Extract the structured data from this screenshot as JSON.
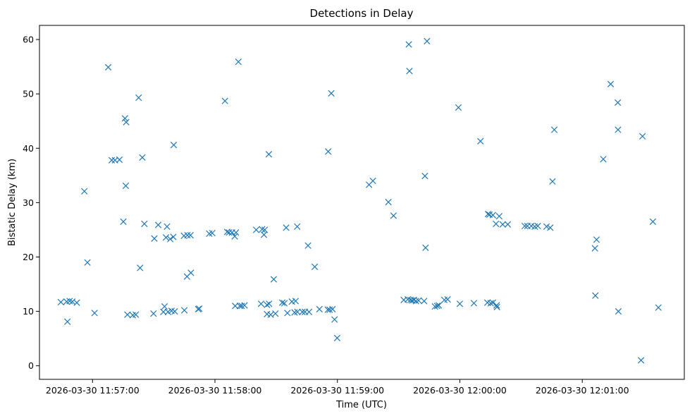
{
  "chart_data": {
    "type": "scatter",
    "title": "Detections in Delay",
    "xlabel": "Time (UTC)",
    "ylabel": "Bistatic Delay (km)",
    "marker": "x",
    "color": "#1f77b4",
    "x_ticks": [
      "2026-03-30 11:57:00",
      "2026-03-30 11:58:00",
      "2026-03-30 11:59:00",
      "2026-03-30 12:00:00",
      "2026-03-30 12:01:00"
    ],
    "y_ticks": [
      "0",
      "10",
      "20",
      "30",
      "40",
      "50",
      "60"
    ],
    "xlim": [
      "2026-03-30 11:56:34",
      "2026-03-30 12:01:50"
    ],
    "ylim": [
      -2.5,
      62.6
    ],
    "grid": false,
    "points": [
      {
        "t": "2026-03-30 11:56:44.5",
        "y": 11.7
      },
      {
        "t": "2026-03-30 11:56:47.3",
        "y": 11.8
      },
      {
        "t": "2026-03-30 11:56:47.7",
        "y": 8.1
      },
      {
        "t": "2026-03-30 11:56:48.8",
        "y": 11.9
      },
      {
        "t": "2026-03-30 11:56:50.1",
        "y": 11.8
      },
      {
        "t": "2026-03-30 11:56:52.3",
        "y": 11.6
      },
      {
        "t": "2026-03-30 11:56:56.0",
        "y": 32.1
      },
      {
        "t": "2026-03-30 11:56:57.5",
        "y": 19.0
      },
      {
        "t": "2026-03-30 11:57:01.0",
        "y": 9.7
      },
      {
        "t": "2026-03-30 11:57:07.7",
        "y": 54.9
      },
      {
        "t": "2026-03-30 11:57:09.4",
        "y": 37.8
      },
      {
        "t": "2026-03-30 11:57:11.0",
        "y": 37.8
      },
      {
        "t": "2026-03-30 11:57:13.2",
        "y": 37.9
      },
      {
        "t": "2026-03-30 11:57:15.1",
        "y": 26.5
      },
      {
        "t": "2026-03-30 11:57:15.9",
        "y": 45.5
      },
      {
        "t": "2026-03-30 11:57:16.5",
        "y": 44.8
      },
      {
        "t": "2026-03-30 11:57:16.3",
        "y": 33.1
      },
      {
        "t": "2026-03-30 11:57:17.1",
        "y": 9.4
      },
      {
        "t": "2026-03-30 11:57:19.7",
        "y": 9.3
      },
      {
        "t": "2026-03-30 11:57:21.2",
        "y": 9.4
      },
      {
        "t": "2026-03-30 11:57:22.6",
        "y": 49.3
      },
      {
        "t": "2026-03-30 11:57:23.3",
        "y": 18.0
      },
      {
        "t": "2026-03-30 11:57:24.4",
        "y": 38.3
      },
      {
        "t": "2026-03-30 11:57:25.4",
        "y": 26.1
      },
      {
        "t": "2026-03-30 11:57:30.3",
        "y": 23.4
      },
      {
        "t": "2026-03-30 11:57:29.9",
        "y": 9.6
      },
      {
        "t": "2026-03-30 11:57:32.2",
        "y": 25.9
      },
      {
        "t": "2026-03-30 11:57:34.7",
        "y": 9.9
      },
      {
        "t": "2026-03-30 11:57:35.3",
        "y": 10.9
      },
      {
        "t": "2026-03-30 11:57:36.0",
        "y": 23.6
      },
      {
        "t": "2026-03-30 11:57:36.5",
        "y": 25.6
      },
      {
        "t": "2026-03-30 11:57:37.0",
        "y": 9.9
      },
      {
        "t": "2026-03-30 11:57:38.1",
        "y": 23.3
      },
      {
        "t": "2026-03-30 11:57:38.7",
        "y": 10.1
      },
      {
        "t": "2026-03-30 11:57:39.8",
        "y": 40.6
      },
      {
        "t": "2026-03-30 11:57:39.6",
        "y": 23.7
      },
      {
        "t": "2026-03-30 11:57:40.3",
        "y": 10.0
      },
      {
        "t": "2026-03-30 11:57:44.8",
        "y": 23.9
      },
      {
        "t": "2026-03-30 11:57:45.0",
        "y": 10.2
      },
      {
        "t": "2026-03-30 11:57:46.3",
        "y": 16.4
      },
      {
        "t": "2026-03-30 11:57:46.5",
        "y": 24.0
      },
      {
        "t": "2026-03-30 11:57:48.0",
        "y": 24.0
      },
      {
        "t": "2026-03-30 11:57:48.2",
        "y": 17.1
      },
      {
        "t": "2026-03-30 11:57:51.8",
        "y": 10.4
      },
      {
        "t": "2026-03-30 11:57:52.3",
        "y": 10.5
      },
      {
        "t": "2026-03-30 11:57:57.2",
        "y": 24.3
      },
      {
        "t": "2026-03-30 11:57:58.7",
        "y": 24.4
      },
      {
        "t": "2026-03-30 11:58:04.9",
        "y": 48.7
      },
      {
        "t": "2026-03-30 11:58:06.0",
        "y": 24.6
      },
      {
        "t": "2026-03-30 11:58:06.9",
        "y": 24.5
      },
      {
        "t": "2026-03-30 11:58:08.4",
        "y": 24.5
      },
      {
        "t": "2026-03-30 11:58:09.7",
        "y": 23.8
      },
      {
        "t": "2026-03-30 11:58:09.9",
        "y": 11.0
      },
      {
        "t": "2026-03-30 11:58:10.3",
        "y": 24.5
      },
      {
        "t": "2026-03-30 11:58:11.5",
        "y": 55.9
      },
      {
        "t": "2026-03-30 11:58:12.2",
        "y": 11.0
      },
      {
        "t": "2026-03-30 11:58:13.1",
        "y": 11.0
      },
      {
        "t": "2026-03-30 11:58:14.5",
        "y": 11.1
      },
      {
        "t": "2026-03-30 11:58:20.2",
        "y": 25.0
      },
      {
        "t": "2026-03-30 11:58:22.6",
        "y": 11.4
      },
      {
        "t": "2026-03-30 11:58:23.1",
        "y": 25.1
      },
      {
        "t": "2026-03-30 11:58:24.0",
        "y": 24.1
      },
      {
        "t": "2026-03-30 11:58:24.4",
        "y": 25.0
      },
      {
        "t": "2026-03-30 11:58:25.5",
        "y": 11.2
      },
      {
        "t": "2026-03-30 11:58:25.5",
        "y": 9.5
      },
      {
        "t": "2026-03-30 11:58:26.4",
        "y": 38.9
      },
      {
        "t": "2026-03-30 11:58:26.5",
        "y": 11.4
      },
      {
        "t": "2026-03-30 11:58:27.3",
        "y": 9.4
      },
      {
        "t": "2026-03-30 11:58:28.8",
        "y": 15.9
      },
      {
        "t": "2026-03-30 11:58:29.6",
        "y": 9.6
      },
      {
        "t": "2026-03-30 11:58:33.0",
        "y": 11.6
      },
      {
        "t": "2026-03-30 11:58:34.0",
        "y": 11.5
      },
      {
        "t": "2026-03-30 11:58:34.9",
        "y": 25.4
      },
      {
        "t": "2026-03-30 11:58:35.5",
        "y": 9.7
      },
      {
        "t": "2026-03-30 11:58:37.7",
        "y": 11.8
      },
      {
        "t": "2026-03-30 11:58:39.0",
        "y": 9.8
      },
      {
        "t": "2026-03-30 11:58:39.5",
        "y": 11.9
      },
      {
        "t": "2026-03-30 11:58:40.3",
        "y": 25.6
      },
      {
        "t": "2026-03-30 11:58:40.4",
        "y": 9.9
      },
      {
        "t": "2026-03-30 11:58:42.8",
        "y": 9.9
      },
      {
        "t": "2026-03-30 11:58:44.1",
        "y": 9.9
      },
      {
        "t": "2026-03-30 11:58:45.6",
        "y": 22.1
      },
      {
        "t": "2026-03-30 11:58:46.1",
        "y": 9.9
      },
      {
        "t": "2026-03-30 11:58:48.9",
        "y": 18.2
      },
      {
        "t": "2026-03-30 11:58:51.2",
        "y": 10.4
      },
      {
        "t": "2026-03-30 11:58:55.3",
        "y": 10.3
      },
      {
        "t": "2026-03-30 11:58:55.5",
        "y": 39.4
      },
      {
        "t": "2026-03-30 11:58:56.2",
        "y": 10.3
      },
      {
        "t": "2026-03-30 11:58:57.0",
        "y": 50.1
      },
      {
        "t": "2026-03-30 11:58:57.6",
        "y": 10.4
      },
      {
        "t": "2026-03-30 11:58:58.6",
        "y": 8.5
      },
      {
        "t": "2026-03-30 11:58:59.9",
        "y": 5.1
      },
      {
        "t": "2026-03-30 11:59:15.5",
        "y": 33.3
      },
      {
        "t": "2026-03-30 11:59:17.4",
        "y": 34.0
      },
      {
        "t": "2026-03-30 11:59:25.0",
        "y": 30.1
      },
      {
        "t": "2026-03-30 11:59:27.5",
        "y": 27.6
      },
      {
        "t": "2026-03-30 11:59:32.5",
        "y": 12.1
      },
      {
        "t": "2026-03-30 11:59:34.5",
        "y": 12.2
      },
      {
        "t": "2026-03-30 11:59:35.0",
        "y": 59.1
      },
      {
        "t": "2026-03-30 11:59:35.3",
        "y": 54.2
      },
      {
        "t": "2026-03-30 11:59:35.8",
        "y": 12.1
      },
      {
        "t": "2026-03-30 11:59:36.6",
        "y": 12.0
      },
      {
        "t": "2026-03-30 11:59:37.5",
        "y": 12.1
      },
      {
        "t": "2026-03-30 11:59:38.5",
        "y": 11.9
      },
      {
        "t": "2026-03-30 11:59:39.8",
        "y": 12.0
      },
      {
        "t": "2026-03-30 11:59:42.5",
        "y": 11.9
      },
      {
        "t": "2026-03-30 11:59:42.9",
        "y": 34.9
      },
      {
        "t": "2026-03-30 11:59:43.2",
        "y": 21.7
      },
      {
        "t": "2026-03-30 11:59:43.9",
        "y": 59.7
      },
      {
        "t": "2026-03-30 11:59:47.8",
        "y": 10.9
      },
      {
        "t": "2026-03-30 11:59:48.9",
        "y": 11.0
      },
      {
        "t": "2026-03-30 11:59:49.7",
        "y": 11.1
      },
      {
        "t": "2026-03-30 11:59:52.4",
        "y": 12.1
      },
      {
        "t": "2026-03-30 11:59:54.0",
        "y": 12.2
      },
      {
        "t": "2026-03-30 11:59:59.3",
        "y": 47.5
      },
      {
        "t": "2026-03-30 12:00:00.0",
        "y": 11.4
      },
      {
        "t": "2026-03-30 12:00:06.9",
        "y": 11.5
      },
      {
        "t": "2026-03-30 12:00:10.1",
        "y": 41.3
      },
      {
        "t": "2026-03-30 12:00:13.5",
        "y": 11.6
      },
      {
        "t": "2026-03-30 12:00:13.8",
        "y": 27.9
      },
      {
        "t": "2026-03-30 12:00:14.5",
        "y": 27.8
      },
      {
        "t": "2026-03-30 12:00:15.1",
        "y": 11.5
      },
      {
        "t": "2026-03-30 12:00:16.2",
        "y": 27.7
      },
      {
        "t": "2026-03-30 12:00:16.2",
        "y": 11.6
      },
      {
        "t": "2026-03-30 12:00:17.7",
        "y": 26.1
      },
      {
        "t": "2026-03-30 12:00:18.2",
        "y": 10.8
      },
      {
        "t": "2026-03-30 12:00:18.0",
        "y": 11.1
      },
      {
        "t": "2026-03-30 12:00:19.3",
        "y": 27.5
      },
      {
        "t": "2026-03-30 12:00:21.0",
        "y": 26.0
      },
      {
        "t": "2026-03-30 12:00:23.5",
        "y": 26.0
      },
      {
        "t": "2026-03-30 12:00:31.8",
        "y": 25.7
      },
      {
        "t": "2026-03-30 12:00:33.1",
        "y": 25.7
      },
      {
        "t": "2026-03-30 12:00:35.0",
        "y": 25.7
      },
      {
        "t": "2026-03-30 12:00:36.7",
        "y": 25.6
      },
      {
        "t": "2026-03-30 12:00:38.2",
        "y": 25.7
      },
      {
        "t": "2026-03-30 12:00:42.5",
        "y": 25.6
      },
      {
        "t": "2026-03-30 12:00:44.3",
        "y": 25.4
      },
      {
        "t": "2026-03-30 12:00:45.4",
        "y": 33.9
      },
      {
        "t": "2026-03-30 12:00:46.3",
        "y": 43.4
      },
      {
        "t": "2026-03-30 12:01:06.2",
        "y": 21.6
      },
      {
        "t": "2026-03-30 12:01:06.4",
        "y": 12.9
      },
      {
        "t": "2026-03-30 12:01:07.0",
        "y": 23.2
      },
      {
        "t": "2026-03-30 12:01:10.3",
        "y": 38.0
      },
      {
        "t": "2026-03-30 12:01:13.9",
        "y": 51.8
      },
      {
        "t": "2026-03-30 12:01:17.4",
        "y": 48.4
      },
      {
        "t": "2026-03-30 12:01:17.5",
        "y": 43.4
      },
      {
        "t": "2026-03-30 12:01:17.7",
        "y": 10.0
      },
      {
        "t": "2026-03-30 12:01:28.8",
        "y": 1.0
      },
      {
        "t": "2026-03-30 12:01:29.5",
        "y": 42.2
      },
      {
        "t": "2026-03-30 12:01:34.6",
        "y": 26.5
      },
      {
        "t": "2026-03-30 12:01:37.3",
        "y": 10.7
      }
    ]
  }
}
